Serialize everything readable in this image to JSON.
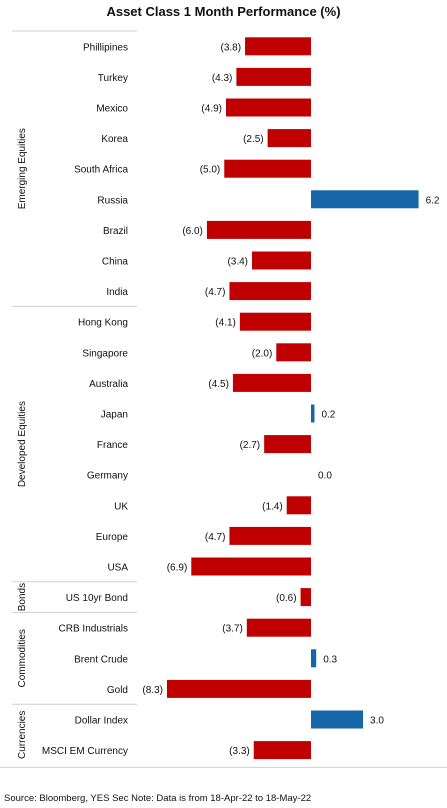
{
  "chart_data": {
    "type": "bar",
    "orientation": "horizontal",
    "title": "Asset Class 1 Month Performance (%)",
    "xlim": [
      -8.3,
      6.2
    ],
    "colors": {
      "positive": "#1565a8",
      "negative": "#c00000"
    },
    "groups": [
      {
        "label": "Emerging Equities",
        "items": [
          {
            "category": "Phillipines",
            "value": -3.8,
            "label": "(3.8)"
          },
          {
            "category": "Turkey",
            "value": -4.3,
            "label": "(4.3)"
          },
          {
            "category": "Mexico",
            "value": -4.9,
            "label": "(4.9)"
          },
          {
            "category": "Korea",
            "value": -2.5,
            "label": "(2.5)"
          },
          {
            "category": "South Africa",
            "value": -5.0,
            "label": "(5.0)"
          },
          {
            "category": "Russia",
            "value": 6.2,
            "label": "6.2"
          },
          {
            "category": "Brazil",
            "value": -6.0,
            "label": "(6.0)"
          },
          {
            "category": "China",
            "value": -3.4,
            "label": "(3.4)"
          },
          {
            "category": "India",
            "value": -4.7,
            "label": "(4.7)"
          }
        ]
      },
      {
        "label": "Developed Equities",
        "items": [
          {
            "category": "Hong Kong",
            "value": -4.1,
            "label": "(4.1)"
          },
          {
            "category": "Singapore",
            "value": -2.0,
            "label": "(2.0)"
          },
          {
            "category": "Australia",
            "value": -4.5,
            "label": "(4.5)"
          },
          {
            "category": "Japan",
            "value": 0.2,
            "label": "0.2"
          },
          {
            "category": "France",
            "value": -2.7,
            "label": "(2.7)"
          },
          {
            "category": "Germany",
            "value": 0.0,
            "label": "0.0"
          },
          {
            "category": "UK",
            "value": -1.4,
            "label": "(1.4)"
          },
          {
            "category": "Europe",
            "value": -4.7,
            "label": "(4.7)"
          },
          {
            "category": "USA",
            "value": -6.9,
            "label": "(6.9)"
          }
        ]
      },
      {
        "label": "Bonds",
        "items": [
          {
            "category": "US 10yr Bond",
            "value": -0.6,
            "label": "(0.6)"
          }
        ]
      },
      {
        "label": "Commodities",
        "items": [
          {
            "category": "CRB Industrials",
            "value": -3.7,
            "label": "(3.7)"
          },
          {
            "category": "Brent Crude",
            "value": 0.3,
            "label": "0.3"
          },
          {
            "category": "Gold",
            "value": -8.3,
            "label": "(8.3)"
          }
        ]
      },
      {
        "label": "Currencies",
        "items": [
          {
            "category": "Dollar Index",
            "value": 3.0,
            "label": "3.0"
          },
          {
            "category": "MSCI EM Currency",
            "value": -3.3,
            "label": "(3.3)"
          }
        ]
      }
    ],
    "source": "Source: Bloomberg, YES Sec Note: Data is from 18-Apr-22 to 18-May-22"
  }
}
